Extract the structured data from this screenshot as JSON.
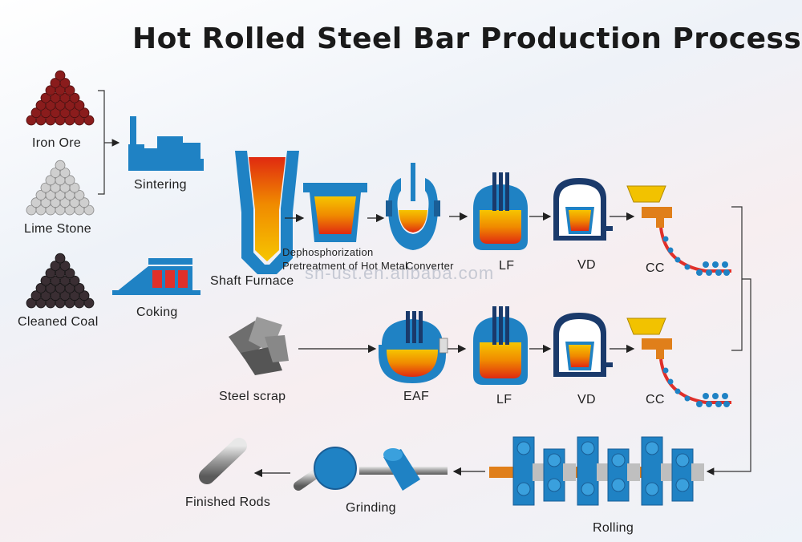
{
  "title": "Hot Rolled Steel Bar Production Process",
  "watermark": "sn-ust.en.alibaba.com",
  "colors": {
    "equipment_blue": "#1f82c4",
    "equipment_dark": "#1a5e96",
    "molten_top": "#f6c500",
    "molten_mid": "#f08a00",
    "molten_bottom": "#e02a10",
    "ore_red": "#8a1c1c",
    "coal_dark": "#3a2e33",
    "stone_grey": "#cfcfcf",
    "arrow": "#222222"
  },
  "raw_materials": {
    "iron_ore": "Iron Ore",
    "lime_stone": "Lime Stone",
    "cleaned_coal": "Cleaned Coal"
  },
  "prep": {
    "sintering": "Sintering",
    "coking": "Coking"
  },
  "route_1": {
    "shaft_furnace": "Shaft Furnace",
    "dephos_line1": "Dephosphorization",
    "dephos_line2": "Pretreatment of Hot Metal",
    "converter": "Converter",
    "lf": "LF",
    "vd": "VD",
    "cc": "CC"
  },
  "route_2": {
    "steel_scrap": "Steel scrap",
    "eaf": "EAF",
    "lf": "LF",
    "vd": "VD",
    "cc": "CC"
  },
  "finishing": {
    "rolling": "Rolling",
    "grinding": "Grinding",
    "finished_rods": "Finished Rods"
  }
}
